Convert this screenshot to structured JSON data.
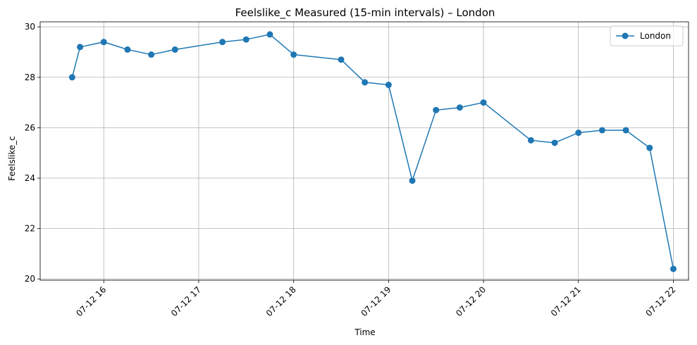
{
  "chart_data": {
    "type": "line",
    "title": "Feelslike_c Measured (15-min intervals) – London",
    "xlabel": "Time",
    "ylabel": "Feelslike_c",
    "ylim": [
      19.95,
      30.2
    ],
    "xlim": [
      "07-12 15:30",
      "07-12 22:00"
    ],
    "grid": true,
    "legend_position": "top-right",
    "x_ticks": [
      "07-12 16",
      "07-12 17",
      "07-12 18",
      "07-12 19",
      "07-12 20",
      "07-12 21",
      "07-12 22"
    ],
    "y_ticks": [
      20,
      22,
      24,
      26,
      28,
      30
    ],
    "series": [
      {
        "name": "London",
        "color": "#1f77b4",
        "marker": "circle",
        "x": [
          "07-12 15:40",
          "07-12 15:45",
          "07-12 16:00",
          "07-12 16:15",
          "07-12 16:30",
          "07-12 16:45",
          "07-12 17:15",
          "07-12 17:30",
          "07-12 17:45",
          "07-12 18:00",
          "07-12 18:30",
          "07-12 18:45",
          "07-12 19:00",
          "07-12 19:15",
          "07-12 19:30",
          "07-12 19:45",
          "07-12 20:00",
          "07-12 20:30",
          "07-12 20:45",
          "07-12 21:00",
          "07-12 21:15",
          "07-12 21:30",
          "07-12 21:45",
          "07-12 22:00"
        ],
        "values": [
          28.0,
          29.2,
          29.4,
          29.1,
          28.9,
          29.1,
          29.4,
          29.5,
          29.7,
          28.9,
          28.7,
          27.8,
          27.7,
          23.9,
          26.7,
          26.8,
          27.0,
          25.5,
          25.4,
          25.8,
          25.9,
          25.9,
          25.2,
          20.4
        ]
      }
    ]
  }
}
